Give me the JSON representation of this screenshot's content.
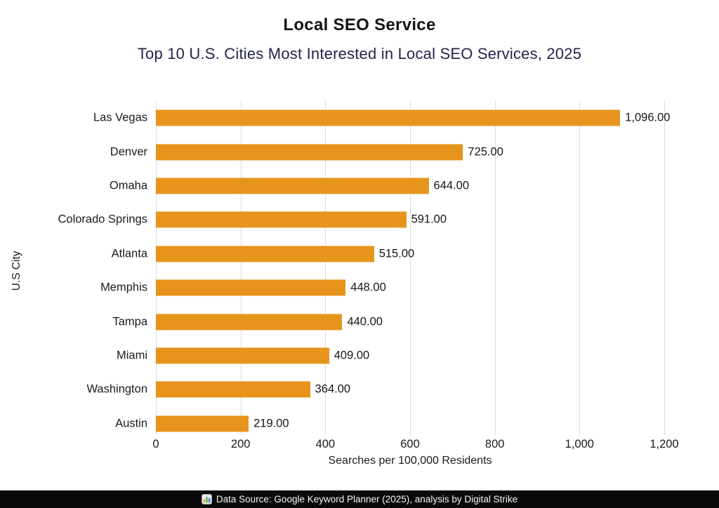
{
  "title": "Local SEO Service",
  "subtitle": "Top 10 U.S. Cities Most Interested in Local SEO Services, 2025",
  "chart_data": {
    "type": "bar",
    "orientation": "horizontal",
    "title": "Local SEO Service",
    "subtitle": "Top 10 U.S. Cities Most Interested in Local SEO Services, 2025",
    "categories": [
      "Las Vegas",
      "Denver",
      "Omaha",
      "Colorado Springs",
      "Atlanta",
      "Memphis",
      "Tampa",
      "Miami",
      "Washington",
      "Austin"
    ],
    "values": [
      1096,
      725,
      644,
      591,
      515,
      448,
      440,
      409,
      364,
      219
    ],
    "value_labels": [
      "1,096.00",
      "725.00",
      "644.00",
      "591.00",
      "515.00",
      "448.00",
      "440.00",
      "409.00",
      "364.00",
      "219.00"
    ],
    "xlabel": "Searches per 100,000 Residents",
    "ylabel": "U.S City",
    "xlim": [
      0,
      1200
    ],
    "x_tick_values": [
      0,
      200,
      400,
      600,
      800,
      1000,
      1200
    ],
    "x_tick_labels": [
      "0",
      "200",
      "400",
      "600",
      "800",
      "1,000",
      "1,200"
    ],
    "grid": true,
    "legend": "none",
    "bar_color": "#E6941C",
    "gridline_color": "#DBDBDB"
  },
  "footer": {
    "icon": "bar-chart-emoji-icon",
    "text": "Data Source: Google Keyword Planner (2025), analysis by Digital Strike"
  },
  "colors": {
    "background": "#FFFFFF",
    "title_text": "#141414",
    "subtitle_text": "#24244F",
    "bar": "#E6941C",
    "gridline": "#DBDBDB",
    "footer_background": "#0A0A0A",
    "footer_text": "#F5F5F5"
  }
}
